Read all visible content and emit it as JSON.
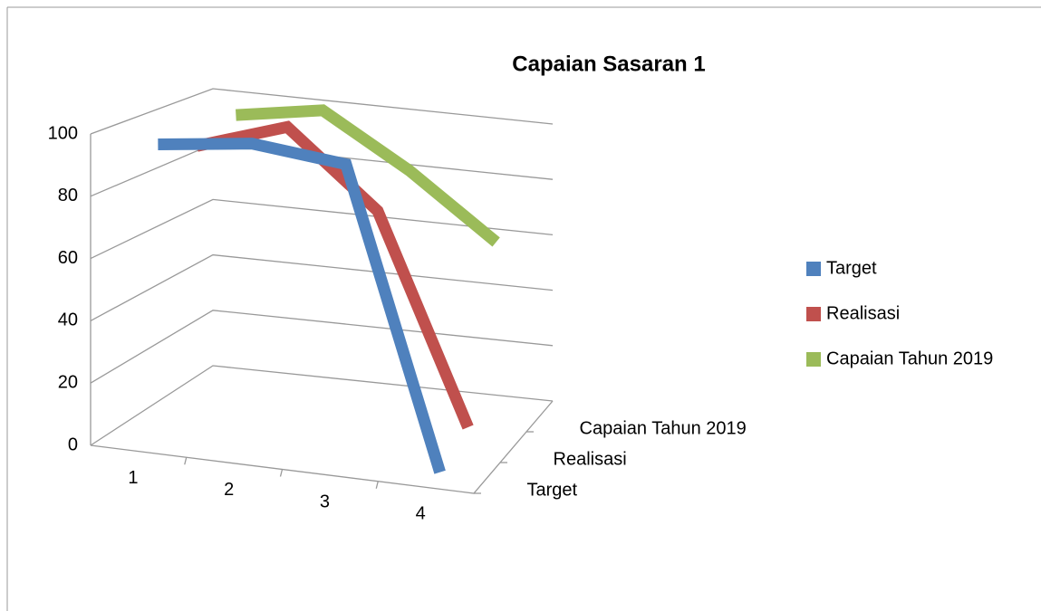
{
  "chart_data": {
    "type": "line3d",
    "title": "Capaian Sasaran 1",
    "categories": [
      "1",
      "2",
      "3",
      "4"
    ],
    "series": [
      {
        "name": "Target",
        "color": "#4f81bd",
        "values": [
          96,
          100,
          97,
          0
        ]
      },
      {
        "name": "Realisasi",
        "color": "#c0504d",
        "values": [
          90,
          100,
          75,
          5
        ]
      },
      {
        "name": "Capaian Tahun 2019",
        "color": "#9bbb59",
        "values": [
          95,
          100,
          82,
          60
        ]
      }
    ],
    "ylim": [
      0,
      100
    ],
    "yticks": [
      0,
      20,
      40,
      60,
      80,
      100
    ],
    "grid": true,
    "legend": "right"
  }
}
